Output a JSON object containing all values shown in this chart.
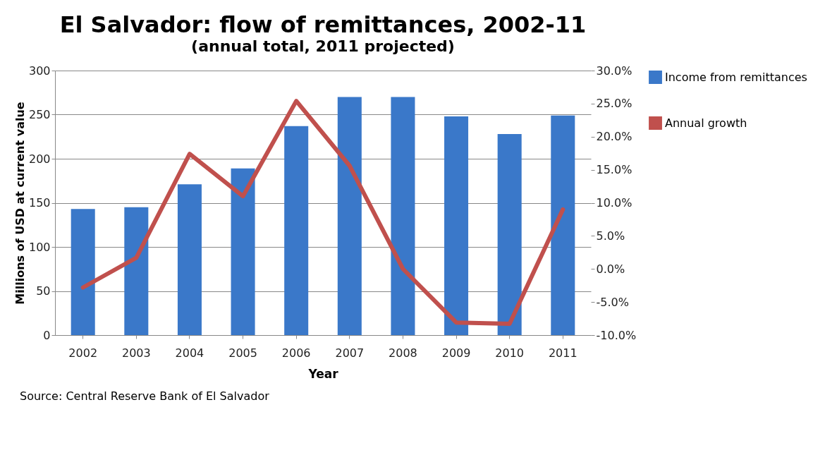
{
  "chart_data": {
    "type": "bar",
    "title": "El Salvador: flow of remittances, 2002-11",
    "subtitle": "(annual total, 2011 projected)",
    "xlabel": "Year",
    "ylabel": "Millions of USD at current value",
    "categories": [
      "2002",
      "2003",
      "2004",
      "2005",
      "2006",
      "2007",
      "2008",
      "2009",
      "2010",
      "2011"
    ],
    "series": [
      {
        "name": "Income from remittances",
        "color": "#3a78c9",
        "values": [
          143,
          145,
          171,
          189,
          237,
          270,
          270,
          248,
          228,
          249
        ]
      },
      {
        "name": "Annual growth",
        "type": "line",
        "axis": "y2",
        "color": "#c0504d",
        "values": [
          -2.8,
          1.7,
          17.4,
          11.0,
          25.4,
          15.6,
          0.0,
          -8.1,
          -8.3,
          9.0
        ]
      }
    ],
    "ylim": [
      0,
      300
    ],
    "yticks": [
      0,
      50,
      100,
      150,
      200,
      250,
      300
    ],
    "y2lim": [
      -10,
      30
    ],
    "y2ticks": [
      {
        "value": -10,
        "label": "-10.0%"
      },
      {
        "value": -5,
        "label": "-5.0%"
      },
      {
        "value": 0,
        "label": "0.0%"
      },
      {
        "value": 5,
        "label": "5.0%"
      },
      {
        "value": 10,
        "label": "10.0%"
      },
      {
        "value": 15,
        "label": "15.0%"
      },
      {
        "value": 20,
        "label": "20.0%"
      },
      {
        "value": 25,
        "label": "25.0%"
      },
      {
        "value": 30,
        "label": "30.0%"
      }
    ],
    "grid": "y",
    "legend": "right",
    "marker": "none",
    "line_style": "solid",
    "annotations": [
      "Source: Central Reserve Bank of El Salvador"
    ]
  }
}
